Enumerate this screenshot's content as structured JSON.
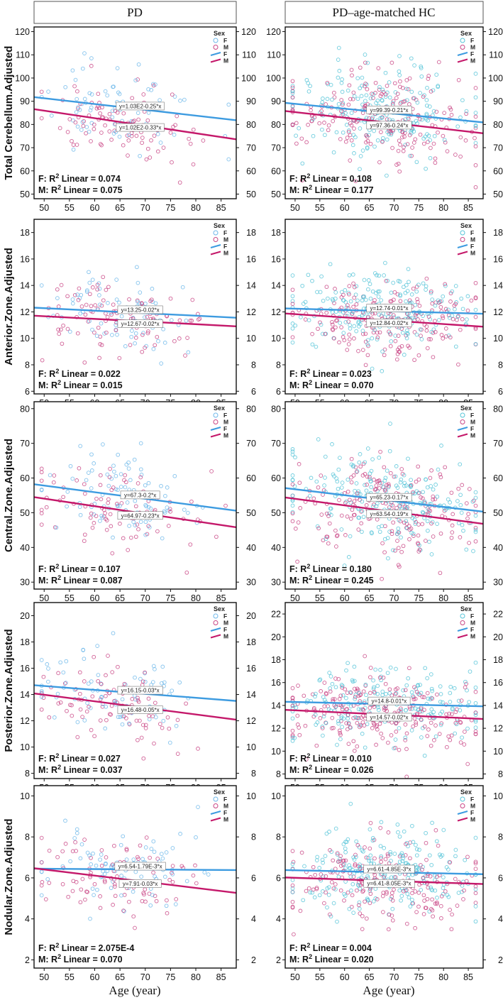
{
  "figure": {
    "column_headers": [
      "PD",
      "PD–age-matched HC"
    ],
    "x_axis_label": "Age (year)",
    "legend_title": "Sex",
    "legend_entries": [
      "F",
      "M",
      "F",
      "M"
    ],
    "colors": {
      "F": "#3d9be0",
      "M": "#c4186a",
      "F_points": "#6fb8ea",
      "M_points": "#c94585",
      "HC_F_points": "#56c4d8"
    }
  },
  "chart_data": [
    {
      "type": "scatter",
      "row": 0,
      "col": 0,
      "ylabel": "Total Cerebellum.Adjusted",
      "xlim": [
        48,
        88
      ],
      "ylim": [
        48,
        122
      ],
      "xticks": [
        50,
        55,
        60,
        65,
        70,
        75,
        80,
        85
      ],
      "yticks": [
        50,
        60,
        70,
        80,
        90,
        100,
        110,
        120
      ],
      "series": [
        {
          "name": "F",
          "line": [
            [
              48,
              91.8
            ],
            [
              88,
              81.8
            ]
          ],
          "equation": "y=1.03E2-0.25*x",
          "r2_text": "F: R",
          "r2_value": " Linear = 0.074"
        },
        {
          "name": "M",
          "line": [
            [
              48,
              86.6
            ],
            [
              88,
              73.6
            ]
          ],
          "equation": "y=1.02E2-0.33*x",
          "r2_text": "M: R",
          "r2_value": " Linear = 0.075"
        }
      ],
      "scatter": {
        "n": 170,
        "mean": 84,
        "sd": 9,
        "xmean": 64,
        "xsd": 8,
        "seed": 11
      }
    },
    {
      "type": "scatter",
      "row": 0,
      "col": 1,
      "ylabel": "",
      "xlim": [
        48,
        88
      ],
      "ylim": [
        48,
        122
      ],
      "xticks": [
        50,
        55,
        60,
        65,
        70,
        75,
        80,
        85
      ],
      "yticks": [
        50,
        60,
        70,
        80,
        90,
        100,
        110,
        120
      ],
      "series": [
        {
          "name": "F",
          "line": [
            [
              48,
              89.3
            ],
            [
              88,
              80.9
            ]
          ],
          "equation": "y=99.39-0.21*x",
          "r2_text": "F: R",
          "r2_value": " Linear = 0.108"
        },
        {
          "name": "M",
          "line": [
            [
              48,
              85.8
            ],
            [
              88,
              76.2
            ]
          ],
          "equation": "y=97.36-0.24*x",
          "r2_text": "M: R",
          "r2_value": " Linear = 0.177"
        }
      ],
      "scatter": {
        "n": 420,
        "mean": 84,
        "sd": 10,
        "xmean": 68,
        "xsd": 10,
        "seed": 23
      }
    },
    {
      "type": "scatter",
      "row": 1,
      "col": 0,
      "ylabel": "Anterior.Zone.Adjusted",
      "xlim": [
        48,
        88
      ],
      "ylim": [
        5.8,
        19
      ],
      "xticks": [
        50,
        55,
        60,
        65,
        70,
        75,
        80,
        85
      ],
      "yticks": [
        6,
        8,
        10,
        12,
        14,
        16,
        18
      ],
      "series": [
        {
          "name": "F",
          "line": [
            [
              48,
              12.32
            ],
            [
              88,
              11.56
            ]
          ],
          "equation": "y=13.25-0.02*x",
          "r2_text": "F: R",
          "r2_value": " Linear = 0.022"
        },
        {
          "name": "M",
          "line": [
            [
              48,
              11.71
            ],
            [
              88,
              10.91
            ]
          ],
          "equation": "y=12.67-0.02*x",
          "r2_text": "M: R",
          "r2_value": " Linear = 0.015"
        }
      ],
      "scatter": {
        "n": 180,
        "mean": 11.5,
        "sd": 1.4,
        "xmean": 64,
        "xsd": 8,
        "seed": 37
      }
    },
    {
      "type": "scatter",
      "row": 1,
      "col": 1,
      "ylabel": "",
      "xlim": [
        48,
        88
      ],
      "ylim": [
        5.8,
        19
      ],
      "xticks": [
        50,
        55,
        60,
        65,
        70,
        75,
        80,
        85
      ],
      "yticks": [
        6,
        8,
        10,
        12,
        14,
        16,
        18
      ],
      "series": [
        {
          "name": "F",
          "line": [
            [
              48,
              12.26
            ],
            [
              88,
              11.86
            ]
          ],
          "equation": "y=12.74-0.01*x",
          "r2_text": "F: R",
          "r2_value": " Linear = 0.023"
        },
        {
          "name": "M",
          "line": [
            [
              48,
              11.88
            ],
            [
              88,
              10.88
            ]
          ],
          "equation": "y=12.84-0.02*x",
          "r2_text": "M: R",
          "r2_value": " Linear = 0.070"
        }
      ],
      "scatter": {
        "n": 430,
        "mean": 11.5,
        "sd": 1.5,
        "xmean": 68,
        "xsd": 10,
        "seed": 41
      }
    },
    {
      "type": "scatter",
      "row": 2,
      "col": 0,
      "ylabel": "Central.Zone.Adjusted",
      "xlim": [
        48,
        88
      ],
      "ylim": [
        28,
        82
      ],
      "xticks": [
        50,
        55,
        60,
        65,
        70,
        75,
        80,
        85
      ],
      "yticks": [
        30,
        40,
        50,
        60,
        70,
        80
      ],
      "series": [
        {
          "name": "F",
          "line": [
            [
              48,
              58.2
            ],
            [
              88,
              50.6
            ]
          ],
          "equation": "y=67.3-0.2*x",
          "r2_text": "F: R",
          "r2_value": " Linear = 0.107"
        },
        {
          "name": "M",
          "line": [
            [
              48,
              54.5
            ],
            [
              88,
              45.8
            ]
          ],
          "equation": "y=64.97-0.23*x",
          "r2_text": "M: R",
          "r2_value": " Linear = 0.087"
        }
      ],
      "scatter": {
        "n": 180,
        "mean": 52,
        "sd": 6.5,
        "xmean": 64,
        "xsd": 8,
        "seed": 53
      }
    },
    {
      "type": "scatter",
      "row": 2,
      "col": 1,
      "ylabel": "",
      "xlim": [
        48,
        88
      ],
      "ylim": [
        28,
        82
      ],
      "xticks": [
        50,
        55,
        60,
        65,
        70,
        75,
        80,
        85
      ],
      "yticks": [
        30,
        40,
        50,
        60,
        70,
        80
      ],
      "series": [
        {
          "name": "F",
          "line": [
            [
              48,
              57.1
            ],
            [
              88,
              50.3
            ]
          ],
          "equation": "y=65.23-0.17*x",
          "r2_text": "F: R",
          "r2_value": " Linear = 0.180"
        },
        {
          "name": "M",
          "line": [
            [
              48,
              54.4
            ],
            [
              88,
              46.8
            ]
          ],
          "equation": "y=63.54-0.19*x",
          "r2_text": "M: R",
          "r2_value": " Linear = 0.245"
        }
      ],
      "scatter": {
        "n": 440,
        "mean": 51,
        "sd": 6.5,
        "xmean": 68,
        "xsd": 10,
        "seed": 67
      }
    },
    {
      "type": "scatter",
      "row": 3,
      "col": 0,
      "ylabel": "Posterior.Zone.Adjusted",
      "xlim": [
        48,
        88
      ],
      "ylim": [
        7.6,
        21
      ],
      "xticks": [
        50,
        55,
        60,
        65,
        70,
        75,
        80,
        85
      ],
      "yticks": [
        8,
        10,
        12,
        14,
        16,
        18,
        20
      ],
      "series": [
        {
          "name": "F",
          "line": [
            [
              48,
              14.71
            ],
            [
              88,
              13.51
            ]
          ],
          "equation": "y=16.15-0.03*x",
          "r2_text": "F: R",
          "r2_value": " Linear = 0.027"
        },
        {
          "name": "M",
          "line": [
            [
              48,
              14.08
            ],
            [
              88,
              12.08
            ]
          ],
          "equation": "y=16.48-0.05*x",
          "r2_text": "M: R",
          "r2_value": " Linear = 0.037"
        }
      ],
      "scatter": {
        "n": 180,
        "mean": 13.8,
        "sd": 1.6,
        "xmean": 64,
        "xsd": 8,
        "seed": 71
      }
    },
    {
      "type": "scatter",
      "row": 3,
      "col": 1,
      "ylabel": "",
      "xlim": [
        48,
        88
      ],
      "ylim": [
        7.6,
        23
      ],
      "xticks": [
        50,
        55,
        60,
        65,
        70,
        75,
        80,
        85
      ],
      "yticks": [
        8,
        10,
        12,
        14,
        16,
        18,
        20,
        22
      ],
      "series": [
        {
          "name": "F",
          "line": [
            [
              48,
              14.32
            ],
            [
              88,
              13.92
            ]
          ],
          "equation": "y=14.8-0.01*x",
          "r2_text": "F: R",
          "r2_value": " Linear = 0.010"
        },
        {
          "name": "M",
          "line": [
            [
              48,
              13.61
            ],
            [
              88,
              12.81
            ]
          ],
          "equation": "y=14.57-0.02*x",
          "r2_text": "M: R",
          "r2_value": " Linear = 0.026"
        }
      ],
      "scatter": {
        "n": 440,
        "mean": 13.6,
        "sd": 1.6,
        "xmean": 68,
        "xsd": 10,
        "seed": 83
      }
    },
    {
      "type": "scatter",
      "row": 4,
      "col": 0,
      "ylabel": "Nodular.Zone.Adjusted",
      "xlim": [
        48,
        88
      ],
      "ylim": [
        1.6,
        10.5
      ],
      "xticks": [
        50,
        55,
        60,
        65,
        70,
        75,
        80,
        85
      ],
      "yticks": [
        2,
        4,
        6,
        8,
        10
      ],
      "series": [
        {
          "name": "F",
          "line": [
            [
              48,
              6.45
            ],
            [
              88,
              6.38
            ]
          ],
          "equation": "y=6.54-1.79E-3*x",
          "r2_text": "F: R",
          "r2_value": " Linear = 2.075E-4"
        },
        {
          "name": "M",
          "line": [
            [
              48,
              6.47
            ],
            [
              88,
              5.27
            ]
          ],
          "equation": "y=7.91-0.03*x",
          "r2_text": "M: R",
          "r2_value": " Linear = 0.070"
        }
      ],
      "scatter": {
        "n": 180,
        "mean": 6.1,
        "sd": 1.0,
        "xmean": 64,
        "xsd": 8,
        "seed": 97
      }
    },
    {
      "type": "scatter",
      "row": 4,
      "col": 1,
      "ylabel": "",
      "xlim": [
        48,
        88
      ],
      "ylim": [
        1.6,
        10.5
      ],
      "xticks": [
        50,
        55,
        60,
        65,
        70,
        75,
        80,
        85
      ],
      "yticks": [
        2,
        4,
        6,
        8,
        10
      ],
      "series": [
        {
          "name": "F",
          "line": [
            [
              48,
              6.38
            ],
            [
              88,
              6.18
            ]
          ],
          "equation": "y=6.61-4.85E-3*x",
          "r2_text": "F: R",
          "r2_value": " Linear = 0.004"
        },
        {
          "name": "M",
          "line": [
            [
              48,
              6.02
            ],
            [
              88,
              5.7
            ]
          ],
          "equation": "y=6.41-8.05E-3*x",
          "r2_text": "M: R",
          "r2_value": " Linear = 0.020"
        }
      ],
      "scatter": {
        "n": 440,
        "mean": 6.0,
        "sd": 1.0,
        "xmean": 68,
        "xsd": 10,
        "seed": 101
      }
    }
  ]
}
